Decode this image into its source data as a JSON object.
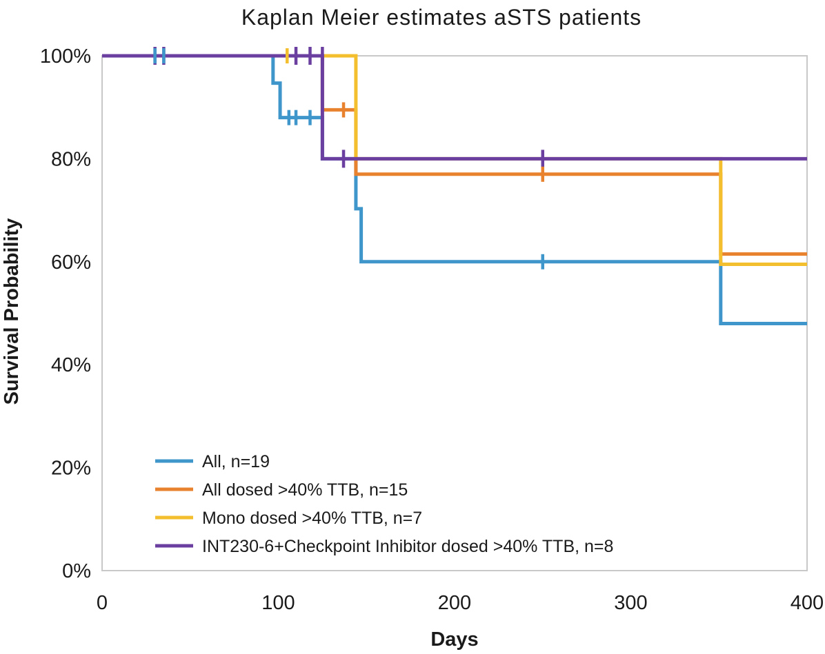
{
  "chart_data": {
    "type": "line",
    "subtype": "kaplan-meier-step",
    "title": "Kaplan Meier estimates aSTS patients",
    "title_color": "#1D6434",
    "xlabel": "Days",
    "ylabel": "Survival Probability",
    "xlim": [
      0,
      400
    ],
    "ylim": [
      0,
      100
    ],
    "grid": false,
    "frame_color": "#C8C8C8",
    "legend_position": "inside-lower-left",
    "x_ticks": [
      {
        "value": 0,
        "label": "0"
      },
      {
        "value": 100,
        "label": "100"
      },
      {
        "value": 200,
        "label": "200"
      },
      {
        "value": 300,
        "label": "300"
      },
      {
        "value": 400,
        "label": "400"
      }
    ],
    "y_ticks": [
      {
        "value": 0,
        "label": "0%"
      },
      {
        "value": 20,
        "label": "20%"
      },
      {
        "value": 40,
        "label": "40%"
      },
      {
        "value": 60,
        "label": "60%"
      },
      {
        "value": 80,
        "label": "80%"
      },
      {
        "value": 100,
        "label": "100%"
      }
    ],
    "series": [
      {
        "key": "all",
        "name": "All, n=19",
        "color": "#3E96CB",
        "points": [
          [
            0,
            100
          ],
          [
            97,
            100
          ],
          [
            97,
            94.7
          ],
          [
            101,
            94.7
          ],
          [
            101,
            88
          ],
          [
            125,
            88
          ],
          [
            125,
            80
          ],
          [
            144,
            80
          ],
          [
            144,
            70.3
          ],
          [
            147,
            70.3
          ],
          [
            147,
            60
          ],
          [
            351,
            60
          ],
          [
            351,
            48
          ],
          [
            400,
            48
          ]
        ],
        "censor_marks": [
          [
            30,
            100
          ],
          [
            35,
            100
          ],
          [
            106,
            88
          ],
          [
            110,
            88
          ],
          [
            118,
            88
          ],
          [
            250,
            60
          ]
        ]
      },
      {
        "key": "all-dosed",
        "name": "All dosed >40% TTB, n=15",
        "color": "#E8822E",
        "points": [
          [
            0,
            100
          ],
          [
            125,
            100
          ],
          [
            125,
            89.5
          ],
          [
            144,
            89.5
          ],
          [
            144,
            77
          ],
          [
            351,
            77
          ],
          [
            351,
            61.5
          ],
          [
            400,
            61.5
          ]
        ],
        "censor_marks": [
          [
            137,
            89.5
          ],
          [
            250,
            77
          ]
        ]
      },
      {
        "key": "mono-dosed",
        "name": "Mono dosed >40% TTB, n=7",
        "color": "#F4BF2E",
        "points": [
          [
            0,
            100
          ],
          [
            144,
            100
          ],
          [
            144,
            80
          ],
          [
            351,
            80
          ],
          [
            351,
            59.5
          ],
          [
            400,
            59.5
          ]
        ],
        "censor_marks": [
          [
            105,
            100
          ]
        ]
      },
      {
        "key": "combo-checkpoint",
        "name": "INT230-6+Checkpoint Inhibitor dosed >40% TTB, n=8",
        "color": "#6A3FA0",
        "points": [
          [
            0,
            100
          ],
          [
            125,
            100
          ],
          [
            125,
            80
          ],
          [
            400,
            80
          ]
        ],
        "censor_marks": [
          [
            30,
            100
          ],
          [
            35,
            100
          ],
          [
            110,
            100
          ],
          [
            118,
            100
          ],
          [
            125,
            100
          ],
          [
            137,
            80
          ],
          [
            250,
            80
          ]
        ]
      }
    ]
  }
}
